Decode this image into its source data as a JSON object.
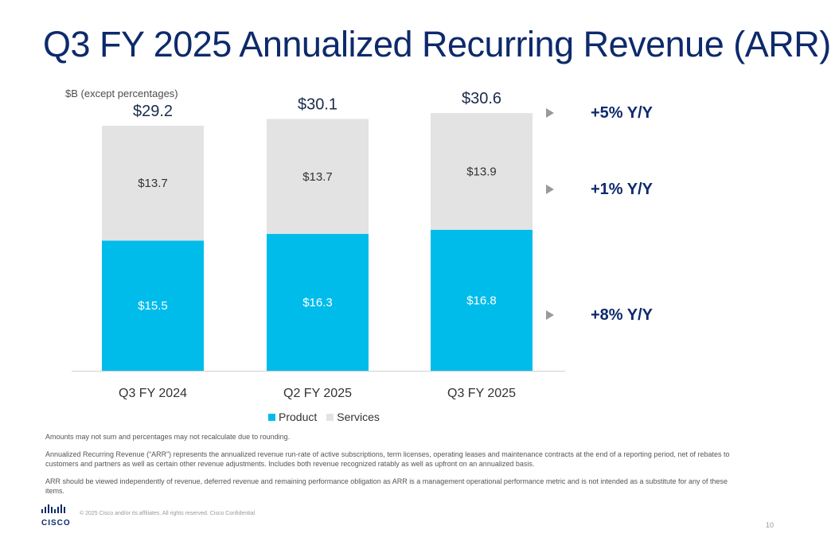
{
  "slide": {
    "title": "Q3 FY 2025 Annualized Recurring Revenue (ARR)",
    "unit_note": "$B (except percentages)",
    "page_number": "10",
    "footer": "© 2025  Cisco and/or its affiliates. All rights reserved.   Cisco Confidential",
    "logo_text": "CISCO",
    "notes": [
      "Amounts may not sum and percentages may not recalculate due to rounding.",
      "Annualized Recurring Revenue (“ARR”) represents the annualized revenue run-rate of active subscriptions, term licenses, operating leases and maintenance contracts at the end of a reporting period, net of rebates to customers and partners as well as certain other revenue adjustments. Includes both revenue recognized ratably as well as upfront on an annualized basis.",
      "ARR should be viewed independently of revenue, deferred revenue and remaining performance obligation as ARR is a management operational performance metric and is not intended as a substitute for any of these items."
    ],
    "yoy": [
      {
        "label": "+5% Y/Y"
      },
      {
        "label": "+1% Y/Y"
      },
      {
        "label": "+8% Y/Y"
      }
    ]
  },
  "chart_data": {
    "type": "bar",
    "stacked": true,
    "categories": [
      "Q3 FY 2024",
      "Q2 FY 2025",
      "Q3 FY 2025"
    ],
    "series": [
      {
        "name": "Product",
        "values": [
          15.5,
          16.3,
          16.8
        ],
        "labels": [
          "$15.5",
          "$16.3",
          "$16.8"
        ],
        "color": "#00bceb"
      },
      {
        "name": "Services",
        "values": [
          13.7,
          13.7,
          13.9
        ],
        "labels": [
          "$13.7",
          "$13.7",
          "$13.9"
        ],
        "color": "#e3e3e3"
      }
    ],
    "totals": [
      29.2,
      30.1,
      30.6
    ],
    "total_labels": [
      "$29.2",
      "$30.1",
      "$30.6"
    ],
    "legend_position": "bottom",
    "grid": false
  }
}
